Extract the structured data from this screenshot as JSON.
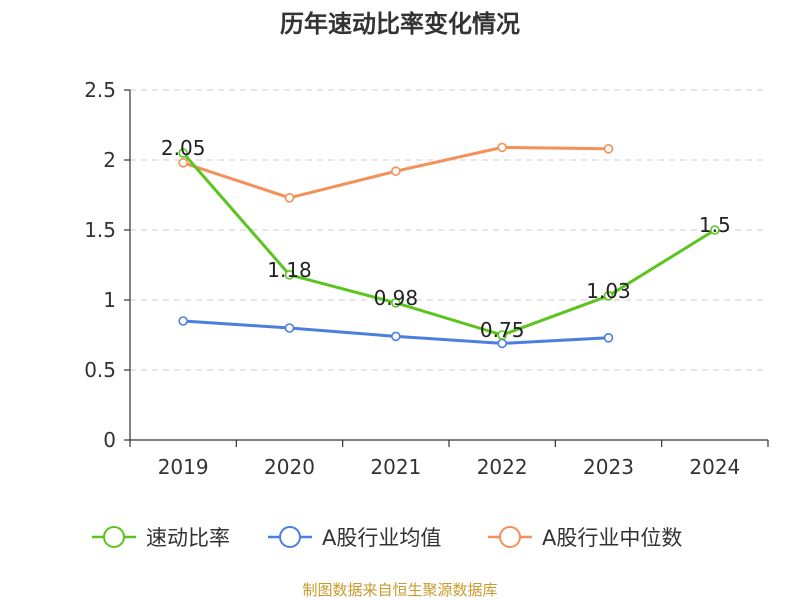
{
  "chart_data": {
    "type": "line",
    "title": "历年速动比率变化情况",
    "categories": [
      "2019",
      "2020",
      "2021",
      "2022",
      "2023",
      "2024"
    ],
    "y_ticks": [
      "0",
      "0.5",
      "1",
      "1.5",
      "2",
      "2.5"
    ],
    "ylim": [
      0,
      2.5
    ],
    "grid": true,
    "legend_position": "bottom",
    "xlabel": "",
    "ylabel": "",
    "series": [
      {
        "name": "速动比率",
        "color": "#5cc41e",
        "values": [
          2.05,
          1.18,
          0.98,
          0.75,
          1.03,
          1.5
        ],
        "labels": [
          "2.05",
          "1.18",
          "0.98",
          "0.75",
          "1.03",
          "1.5"
        ]
      },
      {
        "name": "A股行业均值",
        "color": "#4a80dc",
        "values": [
          0.85,
          0.8,
          0.74,
          0.69,
          0.73,
          null
        ]
      },
      {
        "name": "A股行业中位数",
        "color": "#f4905a",
        "values": [
          1.98,
          1.73,
          1.92,
          2.09,
          2.08,
          null
        ]
      }
    ]
  },
  "source_text": "制图数据来自恒生聚源数据库"
}
